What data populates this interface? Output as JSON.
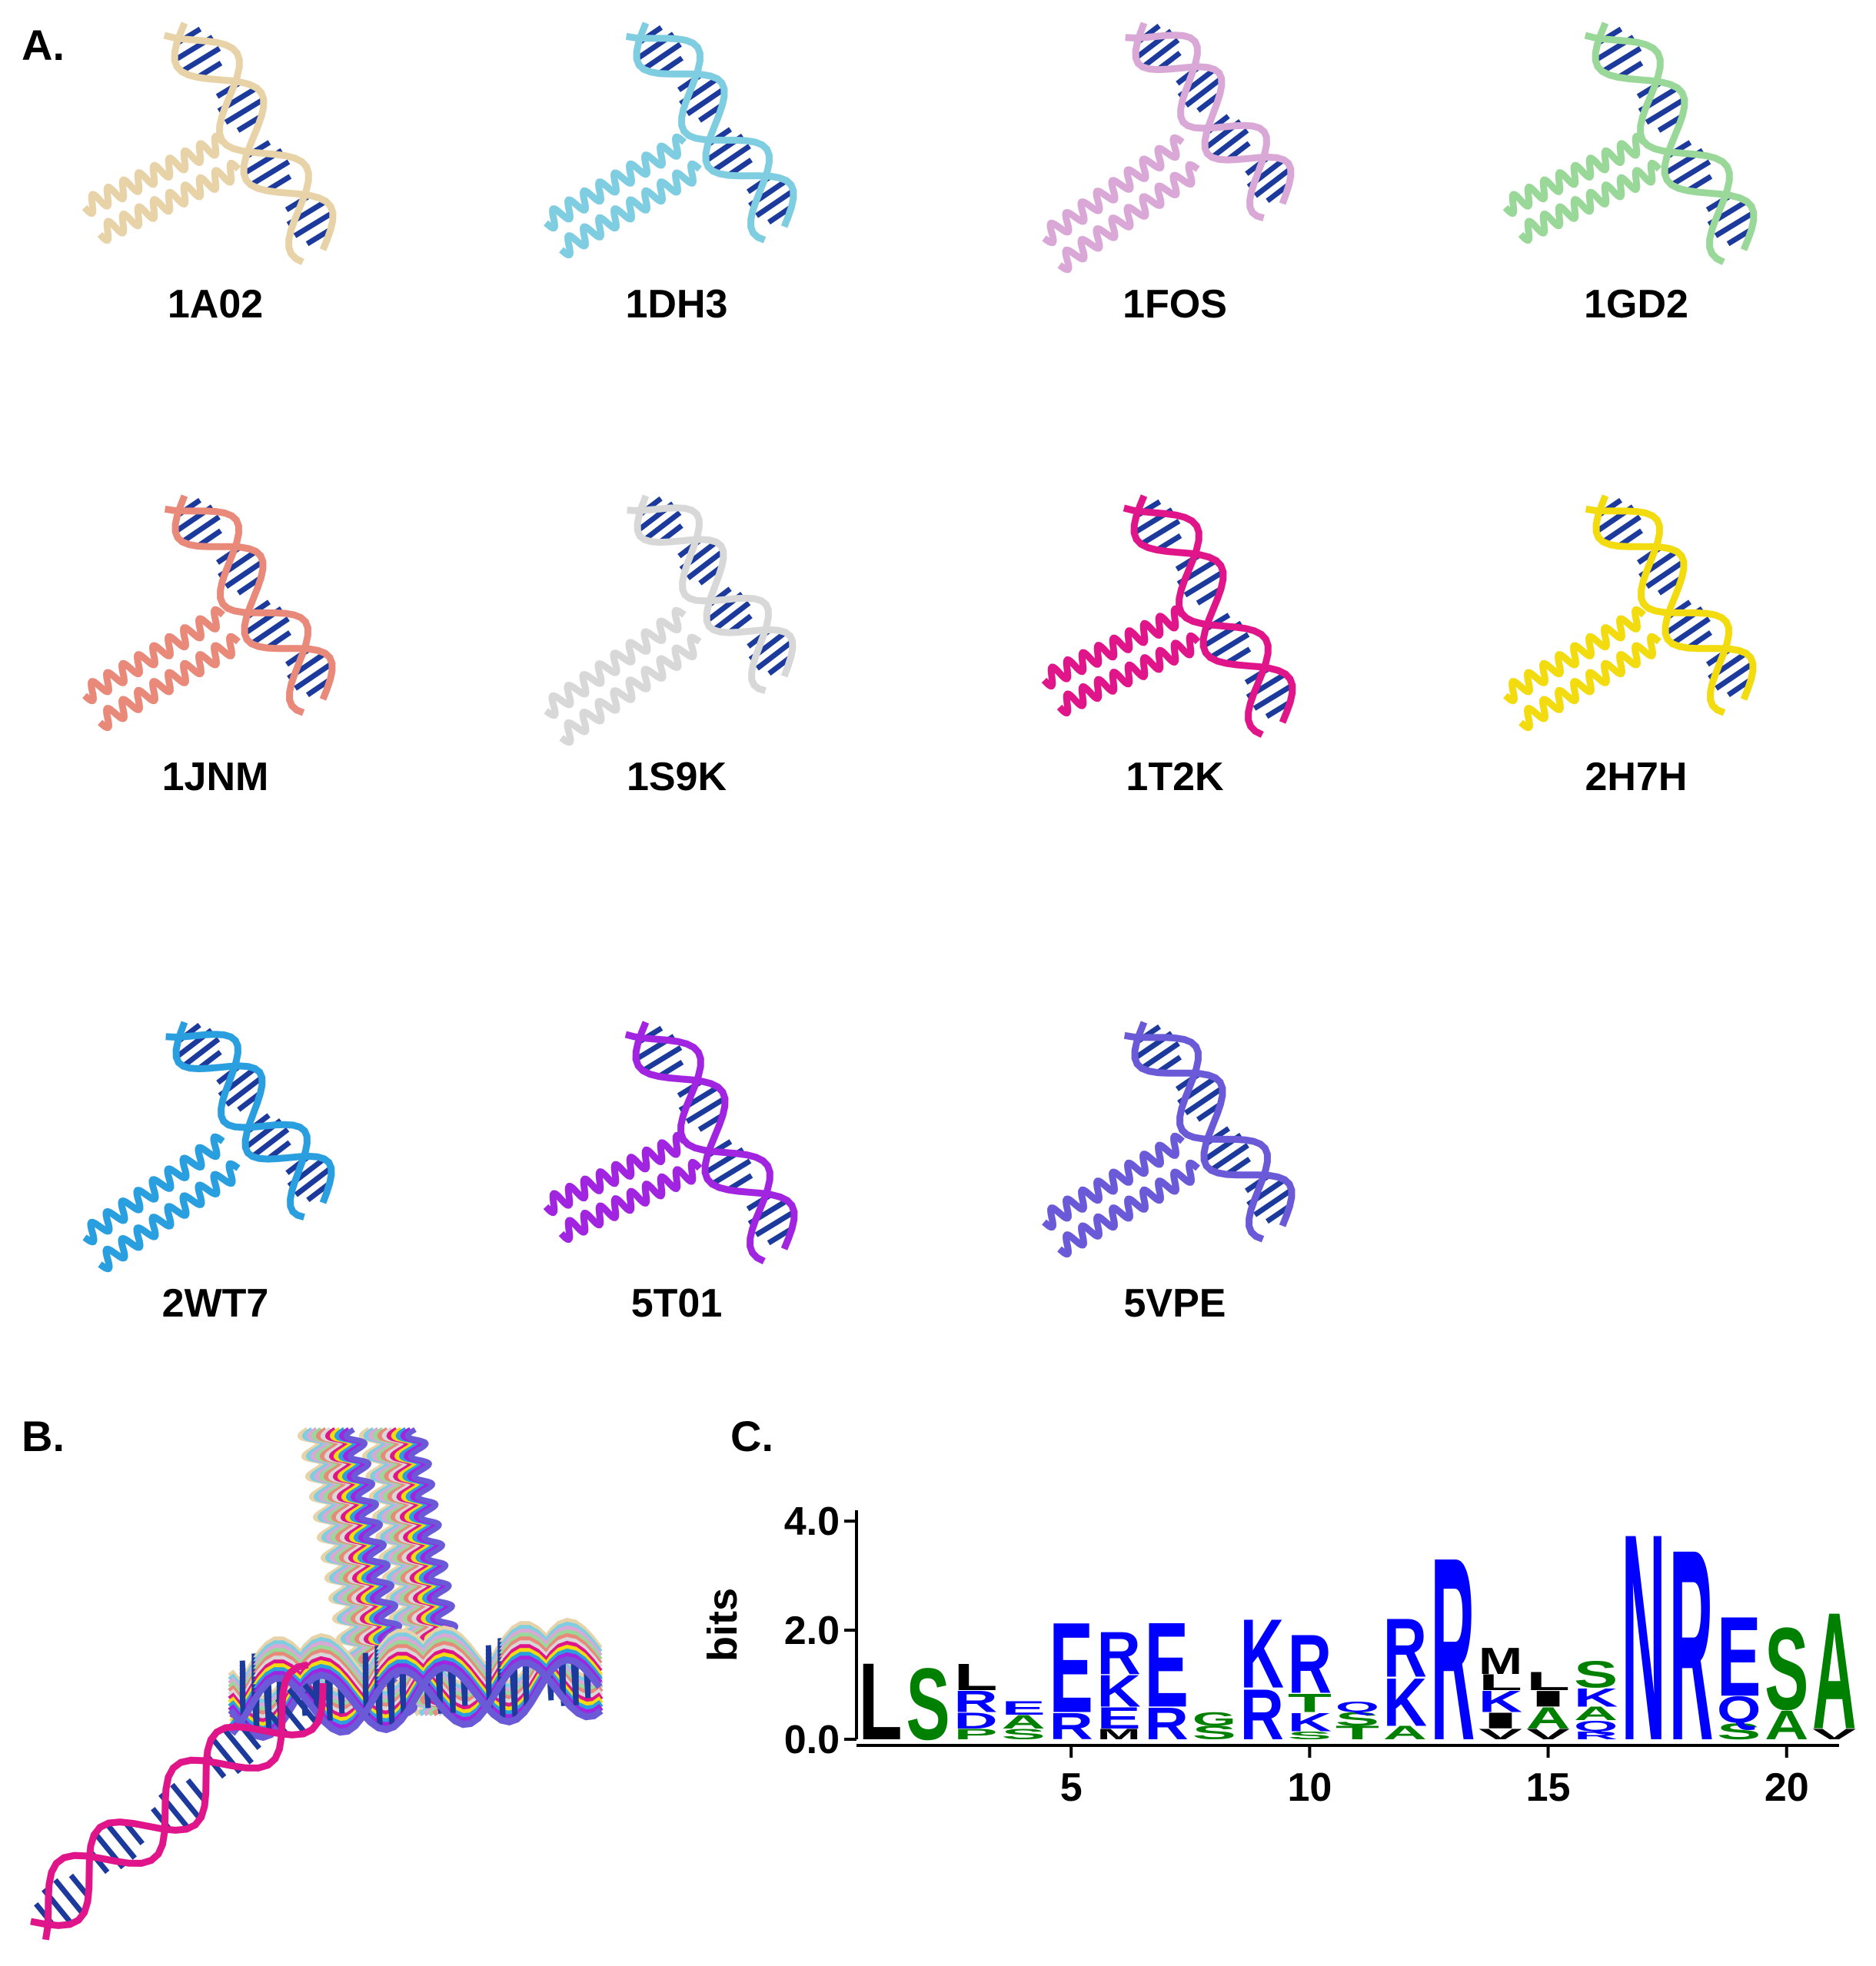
{
  "panels": {
    "a": "A.",
    "b": "B.",
    "c": "C."
  },
  "structures": [
    {
      "name": "1A02",
      "color": "#e8d3a8"
    },
    {
      "name": "1DH3",
      "color": "#7fcde0"
    },
    {
      "name": "1FOS",
      "color": "#d9a8d6"
    },
    {
      "name": "1GD2",
      "color": "#9ad89a"
    },
    {
      "name": "1JNM",
      "color": "#e8897a"
    },
    {
      "name": "1S9K",
      "color": "#d8d8d8"
    },
    {
      "name": "1T2K",
      "color": "#e0158a"
    },
    {
      "name": "2H7H",
      "color": "#f2dc10"
    },
    {
      "name": "2WT7",
      "color": "#2a9fe0"
    },
    {
      "name": "5T01",
      "color": "#a024e0"
    },
    {
      "name": "5VPE",
      "color": "#6a5ad8"
    }
  ],
  "chart_data": {
    "type": "logo",
    "y_label": "bits",
    "x": [
      1,
      2,
      3,
      4,
      5,
      6,
      7,
      8,
      9,
      10,
      11,
      12,
      13,
      14,
      15,
      16,
      17,
      18,
      19,
      20,
      21
    ],
    "stacks": [
      {
        "letters": [
          "L"
        ],
        "heights": [
          1.45
        ]
      },
      {
        "letters": [
          "S"
        ],
        "heights": [
          1.35
        ]
      },
      {
        "letters": [
          "P",
          "D",
          "R",
          "L"
        ],
        "heights": [
          0.2,
          0.3,
          0.4,
          0.5
        ]
      },
      {
        "letters": [
          "S",
          "A",
          "E"
        ],
        "heights": [
          0.2,
          0.25,
          0.25
        ]
      },
      {
        "letters": [
          "R",
          "E"
        ],
        "heights": [
          0.5,
          1.7
        ]
      },
      {
        "letters": [
          "M",
          "E",
          "K",
          "R"
        ],
        "heights": [
          0.2,
          0.4,
          0.6,
          0.8
        ]
      },
      {
        "letters": [
          "R",
          "E"
        ],
        "heights": [
          0.6,
          1.6
        ]
      },
      {
        "letters": [
          "S",
          "G"
        ],
        "heights": [
          0.25,
          0.25
        ]
      },
      {
        "letters": [
          "R",
          "K"
        ],
        "heights": [
          0.95,
          1.3
        ]
      },
      {
        "letters": [
          "S",
          "K",
          "T",
          "R"
        ],
        "heights": [
          0.15,
          0.35,
          0.35,
          1.1
        ]
      },
      {
        "letters": [
          "T",
          "S",
          "Q"
        ],
        "heights": [
          0.25,
          0.25,
          0.2
        ]
      },
      {
        "letters": [
          "A",
          "K",
          "R"
        ],
        "heights": [
          0.25,
          0.9,
          1.1
        ]
      },
      {
        "letters": [
          "R"
        ],
        "heights": [
          3.45
        ]
      },
      {
        "letters": [
          "V",
          "I",
          "K",
          "L",
          "M"
        ],
        "heights": [
          0.2,
          0.3,
          0.4,
          0.3,
          0.5
        ]
      },
      {
        "letters": [
          "V",
          "A",
          "I",
          "L"
        ],
        "heights": [
          0.2,
          0.4,
          0.3,
          0.35
        ]
      },
      {
        "letters": [
          "R",
          "Q",
          "A",
          "K",
          "S"
        ],
        "heights": [
          0.15,
          0.2,
          0.25,
          0.35,
          0.5
        ]
      },
      {
        "letters": [
          "N"
        ],
        "heights": [
          3.9
        ]
      },
      {
        "letters": [
          "R"
        ],
        "heights": [
          3.6
        ]
      },
      {
        "letters": [
          "S",
          "Q",
          "E"
        ],
        "heights": [
          0.3,
          0.5,
          1.5
        ]
      },
      {
        "letters": [
          "A",
          "S"
        ],
        "heights": [
          0.55,
          1.55
        ]
      },
      {
        "letters": [
          "V",
          "A"
        ],
        "heights": [
          0.2,
          2.2
        ]
      }
    ],
    "letter_colors": {
      "K": "#0000ff",
      "R": "#0000ff",
      "E": "#0000ff",
      "N": "#0000ff",
      "Q": "#0000ff",
      "D": "#0000ff",
      "S": "#008000",
      "T": "#008000",
      "A": "#008000",
      "G": "#008000",
      "P": "#008000",
      "M": "#000000",
      "L": "#000000",
      "I": "#000000",
      "V": "#000000"
    },
    "xlim": [
      0.5,
      21.1
    ],
    "ylim": [
      0,
      4.2
    ],
    "xticks": [
      5,
      10,
      15,
      20
    ],
    "yticks": [
      {
        "value": 0,
        "label": "0.0"
      },
      {
        "value": 2,
        "label": "2.0"
      },
      {
        "value": 4,
        "label": "4.0"
      }
    ]
  }
}
